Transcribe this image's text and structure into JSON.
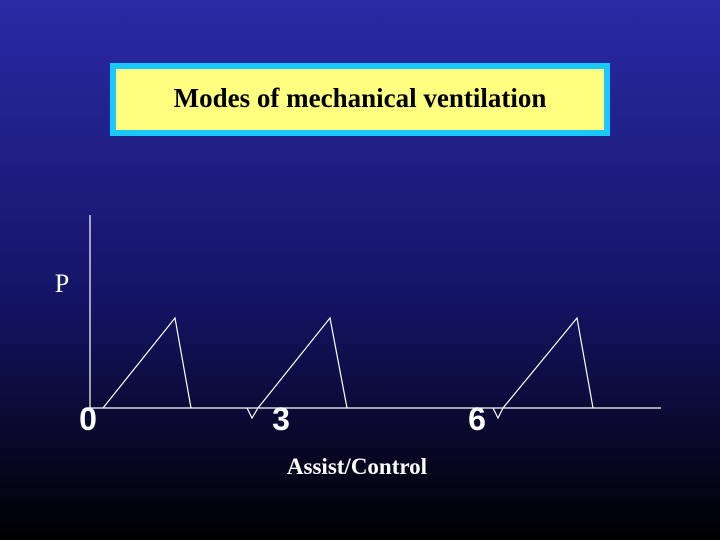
{
  "title": "Modes of mechanical ventilation",
  "diagram": {
    "y_label": "P",
    "x_ticks": [
      "0",
      "3",
      "6"
    ],
    "x_label": "Assist/Control"
  }
}
